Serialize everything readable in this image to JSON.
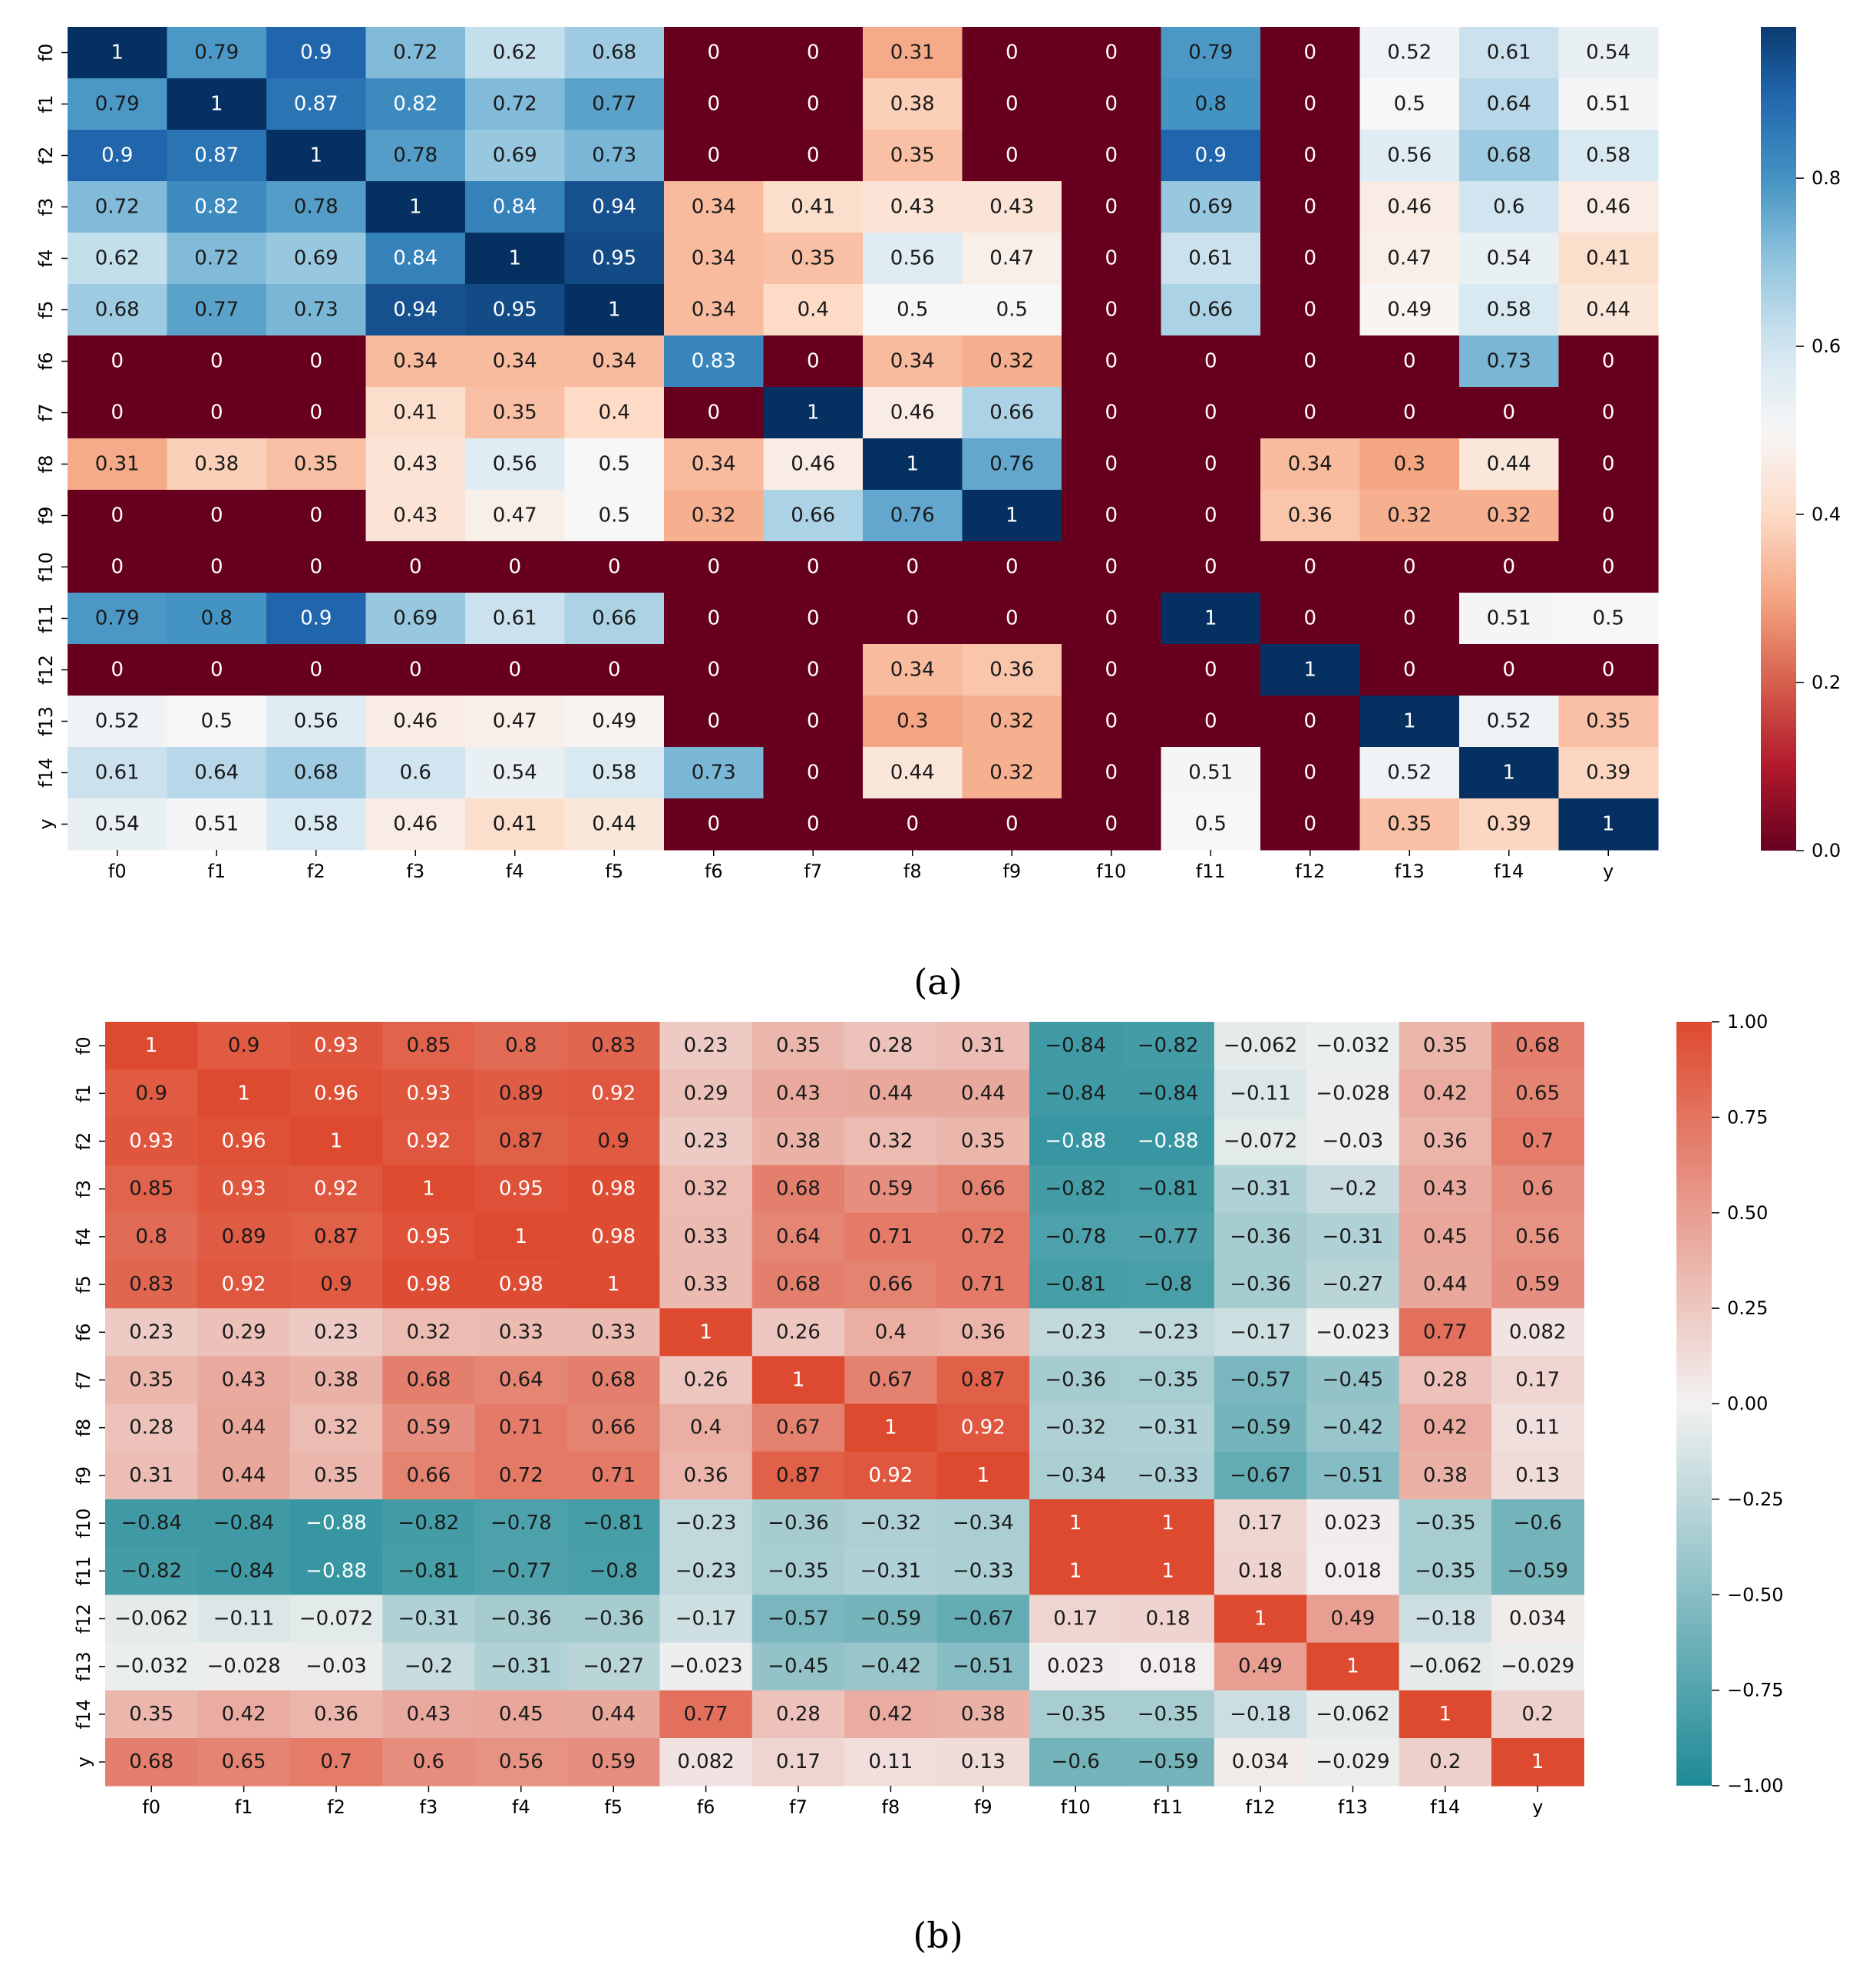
{
  "chart_data": [
    {
      "type": "heatmap",
      "panel_label": "(a)",
      "colormap": "RdBu",
      "colormap_colors": [
        "#67001f",
        "#b2182b",
        "#d6604d",
        "#f4a582",
        "#fddbc7",
        "#f7f7f7",
        "#d1e5f0",
        "#92c5de",
        "#4393c3",
        "#2166ac",
        "#053061"
      ],
      "labels": [
        "f0",
        "f1",
        "f2",
        "f3",
        "f4",
        "f5",
        "f6",
        "f7",
        "f8",
        "f9",
        "f10",
        "f11",
        "f12",
        "f13",
        "f14",
        "y"
      ],
      "value_range": [
        0,
        1
      ],
      "colorbar": {
        "min": 0.0,
        "max": 0.98,
        "ticks": [
          0.0,
          0.2,
          0.4,
          0.6,
          0.8
        ],
        "tick_labels": [
          "0.0",
          "0.2",
          "0.4",
          "0.6",
          "0.8"
        ]
      },
      "matrix": [
        [
          1,
          0.79,
          0.9,
          0.72,
          0.62,
          0.68,
          0,
          0,
          0.31,
          0,
          0,
          0.79,
          0,
          0.52,
          0.61,
          0.54
        ],
        [
          0.79,
          1,
          0.87,
          0.82,
          0.72,
          0.77,
          0,
          0,
          0.38,
          0,
          0,
          0.8,
          0,
          0.5,
          0.64,
          0.51
        ],
        [
          0.9,
          0.87,
          1,
          0.78,
          0.69,
          0.73,
          0,
          0,
          0.35,
          0,
          0,
          0.9,
          0,
          0.56,
          0.68,
          0.58
        ],
        [
          0.72,
          0.82,
          0.78,
          1,
          0.84,
          0.94,
          0.34,
          0.41,
          0.43,
          0.43,
          0,
          0.69,
          0,
          0.46,
          0.6,
          0.46
        ],
        [
          0.62,
          0.72,
          0.69,
          0.84,
          1,
          0.95,
          0.34,
          0.35,
          0.56,
          0.47,
          0,
          0.61,
          0,
          0.47,
          0.54,
          0.41
        ],
        [
          0.68,
          0.77,
          0.73,
          0.94,
          0.95,
          1,
          0.34,
          0.4,
          0.5,
          0.5,
          0,
          0.66,
          0,
          0.49,
          0.58,
          0.44
        ],
        [
          0,
          0,
          0,
          0.34,
          0.34,
          0.34,
          0.83,
          0,
          0.34,
          0.32,
          0,
          0,
          0,
          0,
          0.73,
          0
        ],
        [
          0,
          0,
          0,
          0.41,
          0.35,
          0.4,
          0,
          1,
          0.46,
          0.66,
          0,
          0,
          0,
          0,
          0,
          0
        ],
        [
          0.31,
          0.38,
          0.35,
          0.43,
          0.56,
          0.5,
          0.34,
          0.46,
          1,
          0.76,
          0,
          0,
          0.34,
          0.3,
          0.44,
          0
        ],
        [
          0,
          0,
          0,
          0.43,
          0.47,
          0.5,
          0.32,
          0.66,
          0.76,
          1,
          0,
          0,
          0.36,
          0.32,
          0.32,
          0
        ],
        [
          0,
          0,
          0,
          0,
          0,
          0,
          0,
          0,
          0,
          0,
          0,
          0,
          0,
          0,
          0,
          0
        ],
        [
          0.79,
          0.8,
          0.9,
          0.69,
          0.61,
          0.66,
          0,
          0,
          0,
          0,
          0,
          1,
          0,
          0,
          0.51,
          0.5
        ],
        [
          0,
          0,
          0,
          0,
          0,
          0,
          0,
          0,
          0.34,
          0.36,
          0,
          0,
          1,
          0,
          0,
          0
        ],
        [
          0.52,
          0.5,
          0.56,
          0.46,
          0.47,
          0.49,
          0,
          0,
          0.3,
          0.32,
          0,
          0,
          0,
          1,
          0.52,
          0.35
        ],
        [
          0.61,
          0.64,
          0.68,
          0.6,
          0.54,
          0.58,
          0.73,
          0,
          0.44,
          0.32,
          0,
          0.51,
          0,
          0.52,
          1,
          0.39
        ],
        [
          0.54,
          0.51,
          0.58,
          0.46,
          0.41,
          0.44,
          0,
          0,
          0,
          0,
          0,
          0.5,
          0,
          0.35,
          0.39,
          1
        ]
      ]
    },
    {
      "type": "heatmap",
      "panel_label": "(b)",
      "colormap": "diverging teal-red",
      "colormap_colors": [
        "#1e8a96",
        "#f2f1f1",
        "#de4a2f"
      ],
      "labels": [
        "f0",
        "f1",
        "f2",
        "f3",
        "f4",
        "f5",
        "f6",
        "f7",
        "f8",
        "f9",
        "f10",
        "f11",
        "f12",
        "f13",
        "f14",
        "y"
      ],
      "value_range": [
        -1,
        1
      ],
      "colorbar": {
        "min": -1.0,
        "max": 1.0,
        "ticks": [
          1.0,
          0.75,
          0.5,
          0.25,
          0.0,
          -0.25,
          -0.5,
          -0.75,
          -1.0
        ],
        "tick_labels": [
          "1.00",
          "0.75",
          "0.50",
          "0.25",
          "0.00",
          "−0.25",
          "−0.50",
          "−0.75",
          "−1.00"
        ]
      },
      "matrix": [
        [
          1,
          0.9,
          0.93,
          0.85,
          0.8,
          0.83,
          0.23,
          0.35,
          0.28,
          0.31,
          -0.84,
          -0.82,
          -0.062,
          -0.032,
          0.35,
          0.68
        ],
        [
          0.9,
          1,
          0.96,
          0.93,
          0.89,
          0.92,
          0.29,
          0.43,
          0.44,
          0.44,
          -0.84,
          -0.84,
          -0.11,
          -0.028,
          0.42,
          0.65
        ],
        [
          0.93,
          0.96,
          1,
          0.92,
          0.87,
          0.9,
          0.23,
          0.38,
          0.32,
          0.35,
          -0.88,
          -0.88,
          -0.072,
          -0.03,
          0.36,
          0.7
        ],
        [
          0.85,
          0.93,
          0.92,
          1,
          0.95,
          0.98,
          0.32,
          0.68,
          0.59,
          0.66,
          -0.82,
          -0.81,
          -0.31,
          -0.2,
          0.43,
          0.6
        ],
        [
          0.8,
          0.89,
          0.87,
          0.95,
          1,
          0.98,
          0.33,
          0.64,
          0.71,
          0.72,
          -0.78,
          -0.77,
          -0.36,
          -0.31,
          0.45,
          0.56
        ],
        [
          0.83,
          0.92,
          0.9,
          0.98,
          0.98,
          1,
          0.33,
          0.68,
          0.66,
          0.71,
          -0.81,
          -0.8,
          -0.36,
          -0.27,
          0.44,
          0.59
        ],
        [
          0.23,
          0.29,
          0.23,
          0.32,
          0.33,
          0.33,
          1,
          0.26,
          0.4,
          0.36,
          -0.23,
          -0.23,
          -0.17,
          -0.023,
          0.77,
          0.082
        ],
        [
          0.35,
          0.43,
          0.38,
          0.68,
          0.64,
          0.68,
          0.26,
          1,
          0.67,
          0.87,
          -0.36,
          -0.35,
          -0.57,
          -0.45,
          0.28,
          0.17
        ],
        [
          0.28,
          0.44,
          0.32,
          0.59,
          0.71,
          0.66,
          0.4,
          0.67,
          1,
          0.92,
          -0.32,
          -0.31,
          -0.59,
          -0.42,
          0.42,
          0.11
        ],
        [
          0.31,
          0.44,
          0.35,
          0.66,
          0.72,
          0.71,
          0.36,
          0.87,
          0.92,
          1,
          -0.34,
          -0.33,
          -0.67,
          -0.51,
          0.38,
          0.13
        ],
        [
          -0.84,
          -0.84,
          -0.88,
          -0.82,
          -0.78,
          -0.81,
          -0.23,
          -0.36,
          -0.32,
          -0.34,
          1,
          1,
          0.17,
          0.023,
          -0.35,
          -0.6
        ],
        [
          -0.82,
          -0.84,
          -0.88,
          -0.81,
          -0.77,
          -0.8,
          -0.23,
          -0.35,
          -0.31,
          -0.33,
          1,
          1,
          0.18,
          0.018,
          -0.35,
          -0.59
        ],
        [
          -0.062,
          -0.11,
          -0.072,
          -0.31,
          -0.36,
          -0.36,
          -0.17,
          -0.57,
          -0.59,
          -0.67,
          0.17,
          0.18,
          1,
          0.49,
          -0.18,
          0.034
        ],
        [
          -0.032,
          -0.028,
          -0.03,
          -0.2,
          -0.31,
          -0.27,
          -0.023,
          -0.45,
          -0.42,
          -0.51,
          0.023,
          0.018,
          0.49,
          1,
          -0.062,
          -0.029
        ],
        [
          0.35,
          0.42,
          0.36,
          0.43,
          0.45,
          0.44,
          0.77,
          0.28,
          0.42,
          0.38,
          -0.35,
          -0.35,
          -0.18,
          -0.062,
          1,
          0.2
        ],
        [
          0.68,
          0.65,
          0.7,
          0.6,
          0.56,
          0.59,
          0.082,
          0.17,
          0.11,
          0.13,
          -0.6,
          -0.59,
          0.034,
          -0.029,
          0.2,
          1
        ]
      ]
    }
  ]
}
